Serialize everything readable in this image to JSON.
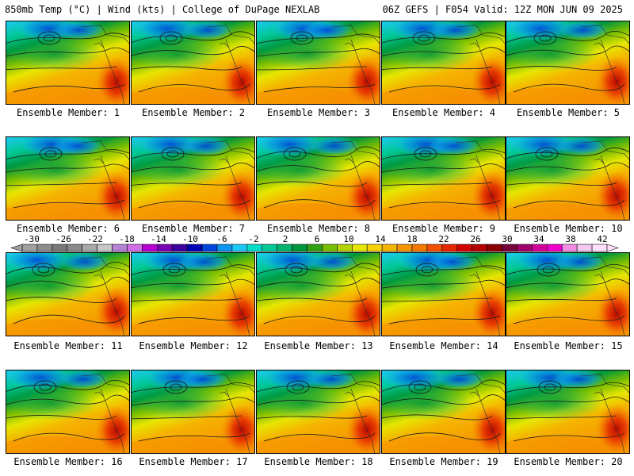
{
  "header": {
    "left": "850mb Temp (°C) | Wind (kts) | College of DuPage NEXLAB",
    "right": "06Z GEFS | F054 Valid: 12Z MON JUN 09 2025"
  },
  "caption_prefix": "Ensemble Member:",
  "members": [
    {
      "label": "Ensemble Member: 1",
      "member": 1
    },
    {
      "label": "Ensemble Member: 2",
      "member": 2
    },
    {
      "label": "Ensemble Member: 3",
      "member": 3
    },
    {
      "label": "Ensemble Member: 4",
      "member": 4
    },
    {
      "label": "Ensemble Member: 5",
      "member": 5
    },
    {
      "label": "Ensemble Member: 6",
      "member": 6
    },
    {
      "label": "Ensemble Member: 7",
      "member": 7
    },
    {
      "label": "Ensemble Member: 8",
      "member": 8
    },
    {
      "label": "Ensemble Member: 9",
      "member": 9
    },
    {
      "label": "Ensemble Member: 10",
      "member": 10
    },
    {
      "label": "Ensemble Member: 11",
      "member": 11
    },
    {
      "label": "Ensemble Member: 12",
      "member": 12
    },
    {
      "label": "Ensemble Member: 13",
      "member": 13
    },
    {
      "label": "Ensemble Member: 14",
      "member": 14
    },
    {
      "label": "Ensemble Member: 15",
      "member": 15
    },
    {
      "label": "Ensemble Member: 16",
      "member": 16
    },
    {
      "label": "Ensemble Member: 17",
      "member": 17
    },
    {
      "label": "Ensemble Member: 18",
      "member": 18
    },
    {
      "label": "Ensemble Member: 19",
      "member": 19
    },
    {
      "label": "Ensemble Member: 20",
      "member": 20
    }
  ],
  "colorbar": {
    "labels": [
      "-30",
      "-26",
      "-22",
      "-18",
      "-14",
      "-10",
      "-6",
      "-2",
      "2",
      "6",
      "10",
      "14",
      "18",
      "22",
      "26",
      "30",
      "34",
      "38",
      "42"
    ],
    "colors": [
      "#a0a0a0",
      "#8c8c8c",
      "#787878",
      "#8a8a8a",
      "#a8a8a8",
      "#c8c8c8",
      "#b482d2",
      "#d26ee6",
      "#b400d2",
      "#7800b4",
      "#3c00a0",
      "#0000b4",
      "#0046dc",
      "#0a96f0",
      "#1ec8f5",
      "#00dcc8",
      "#00c896",
      "#00b46e",
      "#00963c",
      "#32a014",
      "#78be00",
      "#b4d200",
      "#e6e600",
      "#f5d200",
      "#f5b400",
      "#f59600",
      "#f57800",
      "#f05000",
      "#e62800",
      "#d20000",
      "#b40000",
      "#8c0000",
      "#78003c",
      "#a0006e",
      "#d2009a",
      "#f000c8",
      "#f58ce6",
      "#f5c8f0",
      "#ffe0ff"
    ]
  }
}
